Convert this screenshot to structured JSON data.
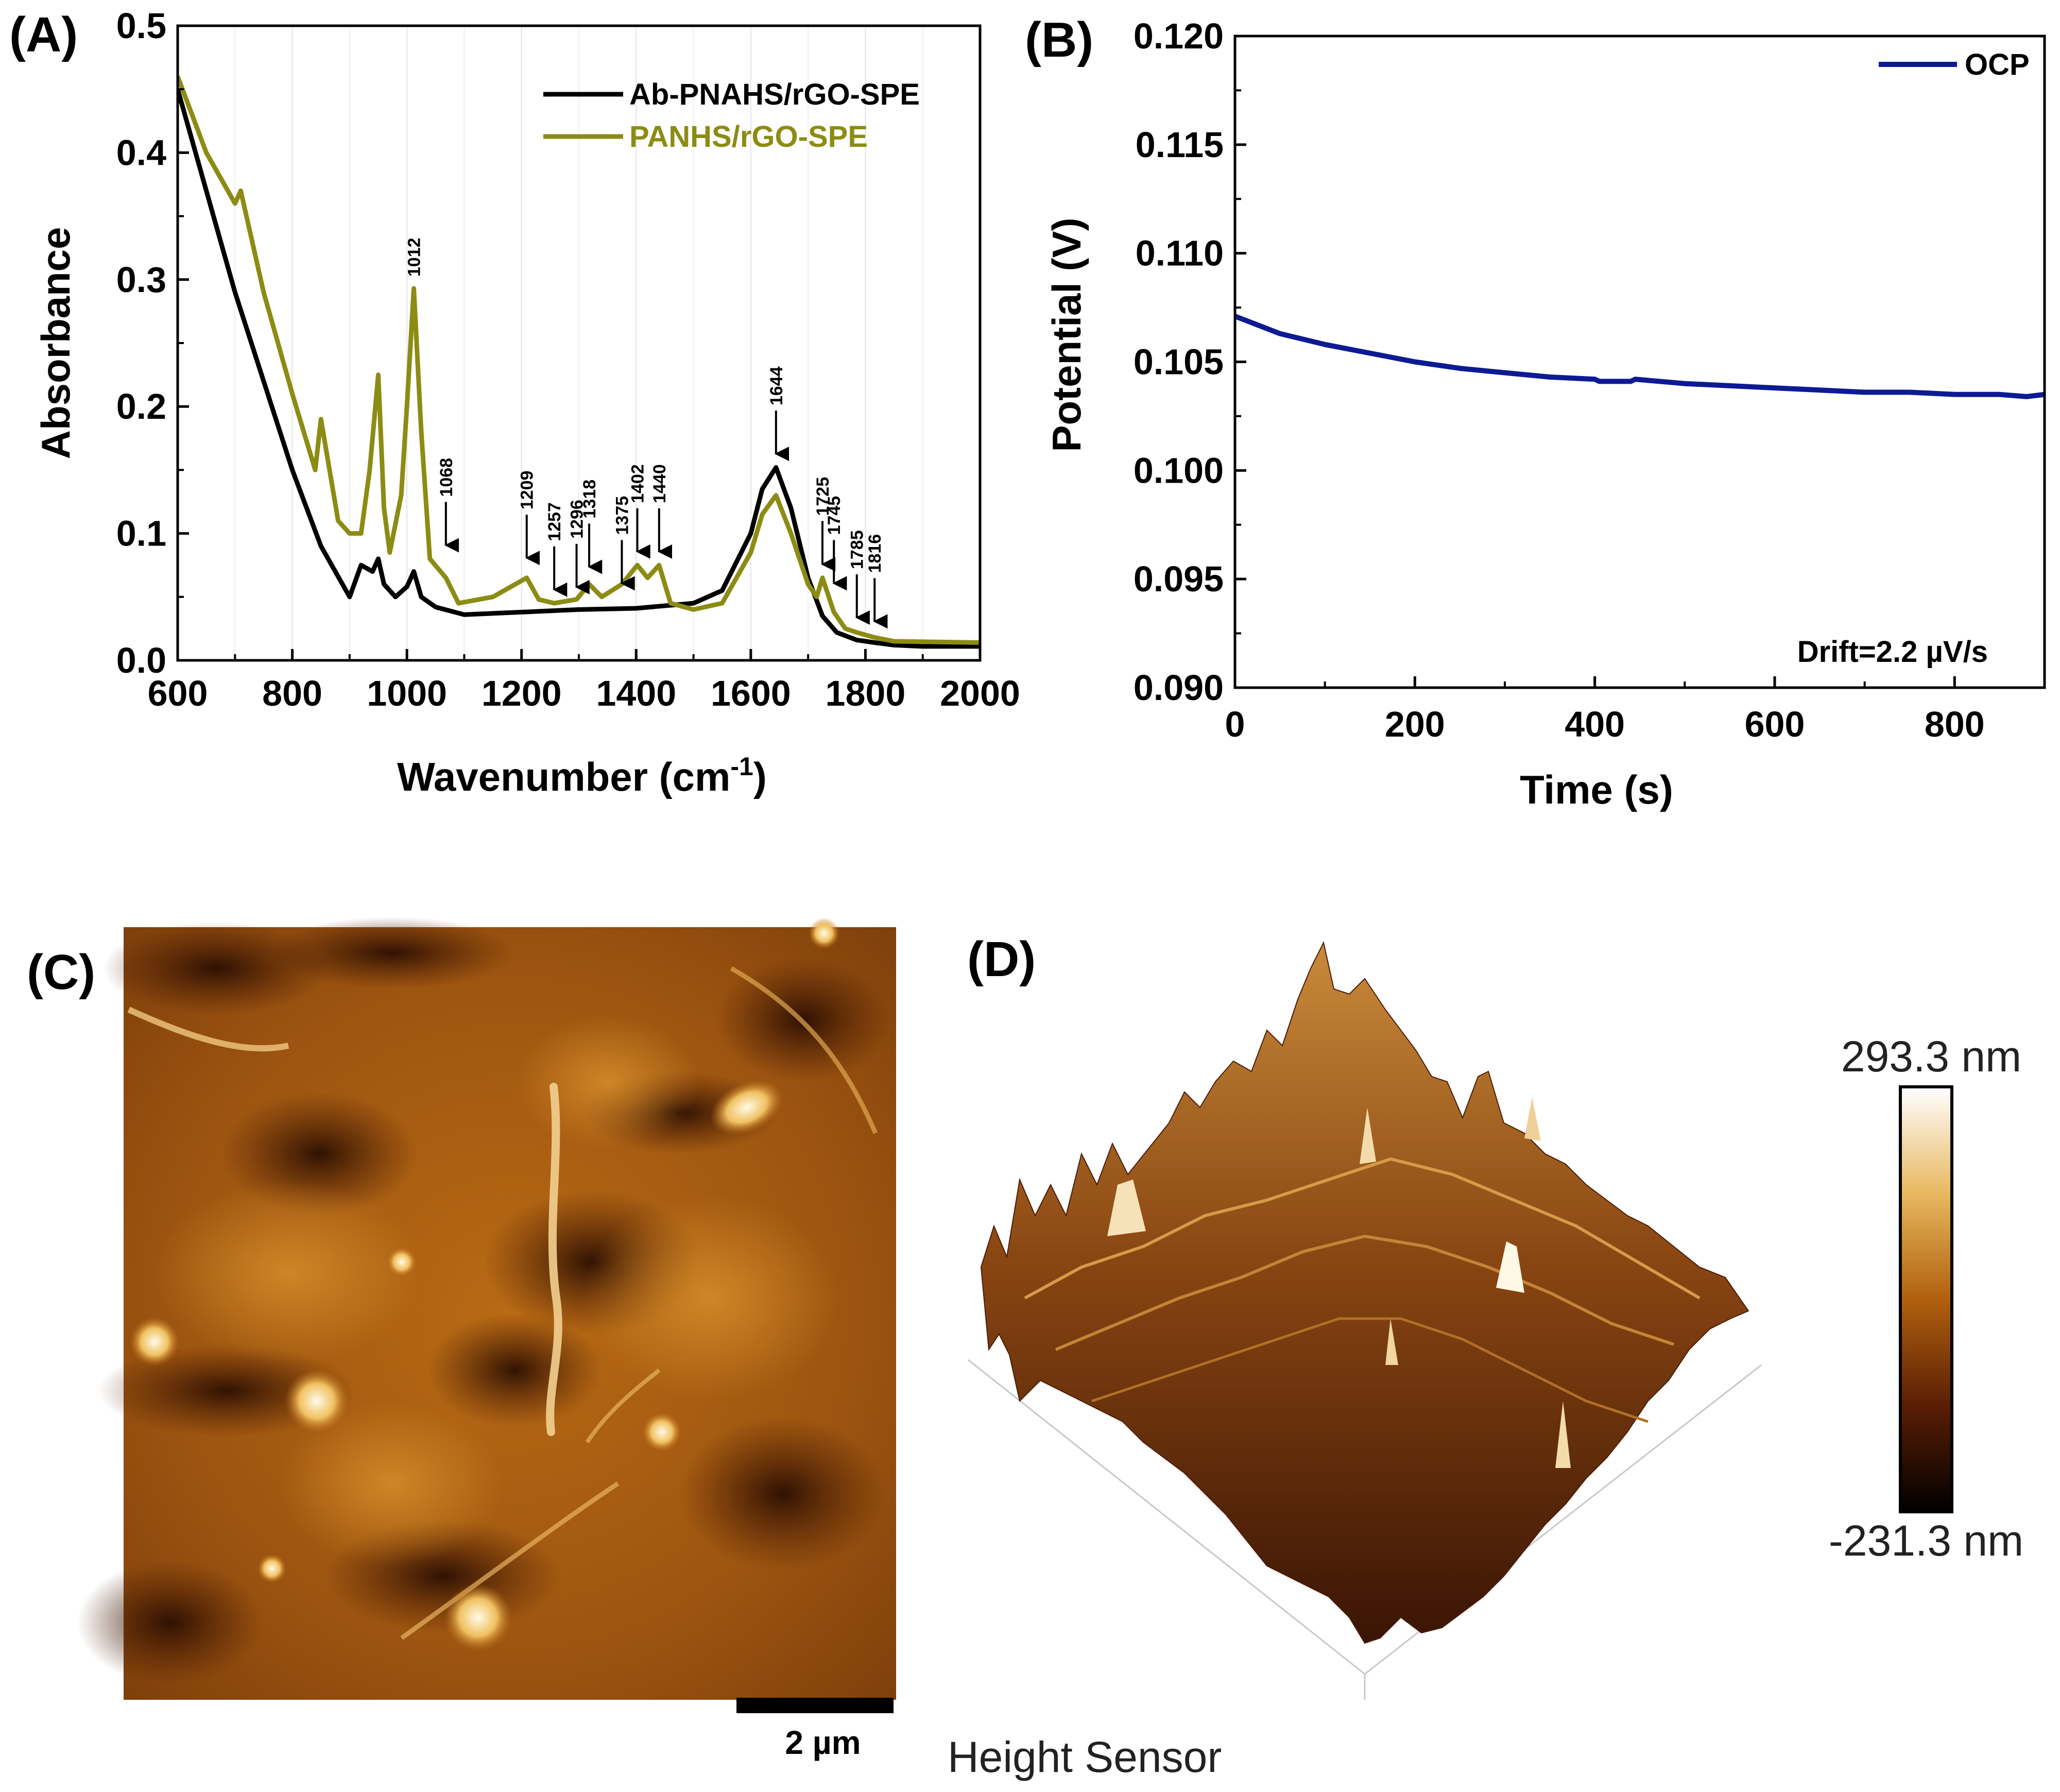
{
  "chart_data": [
    {
      "panel": "(A)",
      "type": "line",
      "xlabel": "Wavenumber (cm",
      "xlabel_sup": "-1",
      "xlabel_end": ")",
      "ylabel": "Absorbance",
      "xlim": [
        600,
        2000
      ],
      "ylim": [
        0.0,
        0.5
      ],
      "xticks": [
        "600",
        "800",
        "1000",
        "1200",
        "1400",
        "1600",
        "1800",
        "2000"
      ],
      "yticks": [
        "0.0",
        "0.1",
        "0.2",
        "0.3",
        "0.4",
        "0.5"
      ],
      "series": [
        {
          "name": "Ab-PNAHS/rGO-SPE",
          "color": "#000000",
          "x": [
            600,
            650,
            700,
            750,
            800,
            850,
            900,
            920,
            940,
            950,
            960,
            980,
            1000,
            1012,
            1025,
            1050,
            1100,
            1200,
            1300,
            1400,
            1500,
            1550,
            1600,
            1620,
            1644,
            1670,
            1700,
            1725,
            1750,
            1785,
            1816,
            1850,
            1900,
            2000
          ],
          "y": [
            0.45,
            0.37,
            0.29,
            0.22,
            0.15,
            0.09,
            0.05,
            0.075,
            0.07,
            0.08,
            0.06,
            0.05,
            0.058,
            0.07,
            0.05,
            0.042,
            0.036,
            0.038,
            0.04,
            0.041,
            0.045,
            0.055,
            0.1,
            0.135,
            0.152,
            0.12,
            0.065,
            0.035,
            0.022,
            0.016,
            0.014,
            0.012,
            0.011,
            0.011
          ]
        },
        {
          "name": "PANHS/rGO-SPE",
          "color": "#8c8c14",
          "x": [
            600,
            650,
            700,
            710,
            750,
            800,
            840,
            850,
            880,
            900,
            920,
            935,
            950,
            960,
            970,
            990,
            1000,
            1012,
            1025,
            1040,
            1068,
            1090,
            1150,
            1209,
            1230,
            1257,
            1296,
            1318,
            1340,
            1375,
            1402,
            1420,
            1440,
            1460,
            1500,
            1550,
            1600,
            1620,
            1644,
            1670,
            1700,
            1715,
            1725,
            1745,
            1765,
            1785,
            1816,
            1850,
            2000
          ],
          "y": [
            0.46,
            0.4,
            0.36,
            0.37,
            0.29,
            0.21,
            0.15,
            0.19,
            0.11,
            0.1,
            0.1,
            0.15,
            0.225,
            0.12,
            0.085,
            0.13,
            0.2,
            0.293,
            0.18,
            0.08,
            0.065,
            0.045,
            0.05,
            0.065,
            0.048,
            0.045,
            0.048,
            0.06,
            0.05,
            0.06,
            0.075,
            0.065,
            0.075,
            0.045,
            0.04,
            0.045,
            0.085,
            0.115,
            0.13,
            0.1,
            0.06,
            0.05,
            0.065,
            0.038,
            0.025,
            0.022,
            0.018,
            0.015,
            0.014
          ]
        }
      ],
      "annotations": [
        {
          "label": "1012",
          "x": 1012,
          "y": 0.295,
          "arrow": false
        },
        {
          "label": "1068",
          "x": 1068,
          "y": 0.085,
          "arrow": true
        },
        {
          "label": "1209",
          "x": 1209,
          "y": 0.075,
          "arrow": true
        },
        {
          "label": "1257",
          "x": 1257,
          "y": 0.05,
          "arrow": true
        },
        {
          "label": "1296",
          "x": 1296,
          "y": 0.052,
          "arrow": true
        },
        {
          "label": "1318",
          "x": 1318,
          "y": 0.068,
          "arrow": true
        },
        {
          "label": "1375",
          "x": 1375,
          "y": 0.055,
          "arrow": true
        },
        {
          "label": "1402",
          "x": 1402,
          "y": 0.08,
          "arrow": true
        },
        {
          "label": "1440",
          "x": 1440,
          "y": 0.08,
          "arrow": true
        },
        {
          "label": "1644",
          "x": 1644,
          "y": 0.157,
          "arrow": true
        },
        {
          "label": "1725",
          "x": 1725,
          "y": 0.07,
          "arrow": true
        },
        {
          "label": "1745",
          "x": 1745,
          "y": 0.055,
          "arrow": true
        },
        {
          "label": "1785",
          "x": 1785,
          "y": 0.028,
          "arrow": true
        },
        {
          "label": "1816",
          "x": 1816,
          "y": 0.025,
          "arrow": true
        }
      ],
      "legend": "top-right"
    },
    {
      "panel": "(B)",
      "type": "line",
      "xlabel": "Time (s)",
      "ylabel": "Potential (V)",
      "xlim": [
        0,
        900
      ],
      "ylim": [
        0.09,
        0.12
      ],
      "xticks": [
        "0",
        "200",
        "400",
        "600",
        "800"
      ],
      "yticks": [
        "0.090",
        "0.095",
        "0.100",
        "0.105",
        "0.110",
        "0.115",
        "0.120"
      ],
      "series": [
        {
          "name": "OCP",
          "color": "#0d1a94",
          "x": [
            0,
            25,
            50,
            100,
            150,
            200,
            250,
            300,
            350,
            400,
            405,
            440,
            445,
            500,
            550,
            600,
            650,
            700,
            750,
            800,
            850,
            880,
            900
          ],
          "y": [
            0.1071,
            0.1067,
            0.1063,
            0.1058,
            0.1054,
            0.105,
            0.1047,
            0.1045,
            0.1043,
            0.1042,
            0.1041,
            0.1041,
            0.1042,
            0.104,
            0.1039,
            0.1038,
            0.1037,
            0.1036,
            0.1036,
            0.1035,
            0.1035,
            0.1034,
            0.1035
          ]
        }
      ],
      "annotation": "Drift=2.2 µV/s",
      "legend": "top-right"
    }
  ],
  "panel_c": {
    "label": "(C)",
    "scale_bar": "2 µm"
  },
  "panel_d": {
    "label": "(D)",
    "caption": "Height Sensor",
    "colorbar_max": "293.3 nm",
    "colorbar_min": "-231.3 nm"
  }
}
